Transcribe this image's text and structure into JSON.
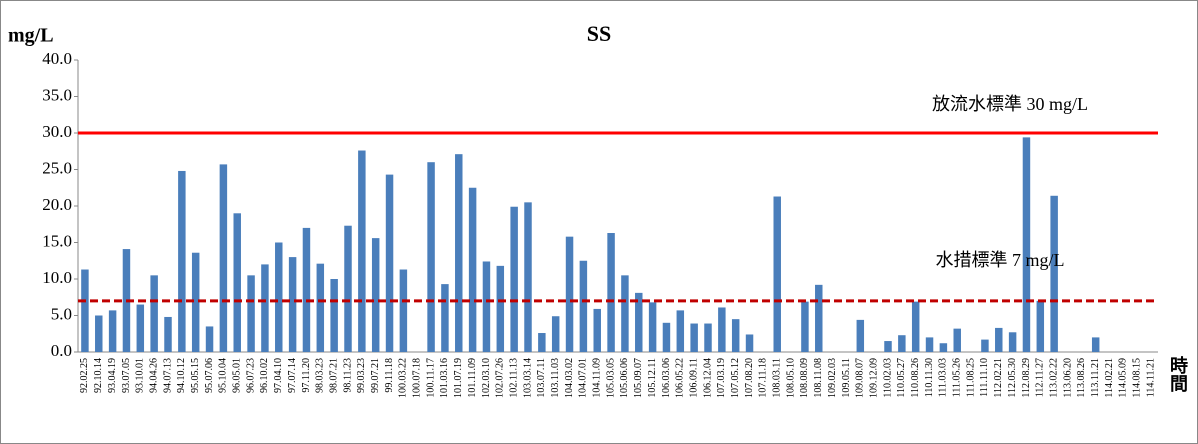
{
  "chart_data": {
    "type": "bar",
    "title": "SS",
    "y_label": "mg/L",
    "x_label": "時間",
    "color": "#4a7ebb",
    "categories": [
      "92.02.25",
      "92.10.14",
      "93.04.19",
      "93.07.05",
      "93.10.01",
      "94.04.26",
      "94.07.13",
      "94.10.12",
      "95.05.15",
      "95.07.06",
      "95.10.04",
      "96.05.01",
      "96.07.23",
      "96.10.02",
      "97.04.10",
      "97.07.14",
      "97.11.20",
      "98.03.23",
      "98.07.21",
      "98.11.23",
      "99.03.23",
      "99.07.21",
      "99.11.18",
      "100.03.22",
      "100.07.18",
      "100.11.17",
      "101.03.16",
      "101.07.19",
      "101.11.09",
      "102.03.10",
      "102.07.26",
      "102.11.13",
      "103.03.14",
      "103.07.11",
      "103.11.03",
      "104.03.02",
      "104.07.01",
      "104.11.09",
      "105.03.05",
      "105.06.06",
      "105.09.07",
      "105.12.11",
      "106.03.06",
      "106.05.22",
      "106.09.11",
      "106.12.04",
      "107.03.19",
      "107.05.12",
      "107.08.20",
      "107.11.18",
      "108.03.11",
      "108.05.10",
      "108.08.09",
      "108.11.08",
      "109.02.03",
      "109.05.11",
      "109.08.07",
      "109.12.09",
      "110.02.03",
      "110.05.27",
      "110.08.26",
      "110.11.30",
      "111.03.03",
      "111.05.26",
      "111.08.25",
      "111.11.10",
      "112.02.21",
      "112.05.30",
      "112.08.29",
      "112.11.27",
      "113.02.22",
      "113.06.20",
      "113.08.26",
      "113.11.21",
      "114.02.21",
      "114.05.09",
      "114.08.15",
      "114.11.21"
    ],
    "values": [
      11.3,
      5.0,
      5.7,
      14.1,
      6.5,
      10.5,
      4.8,
      24.8,
      13.6,
      3.5,
      25.7,
      19.0,
      10.5,
      12.0,
      15.0,
      13.0,
      17.0,
      12.1,
      10.0,
      17.3,
      27.6,
      15.6,
      24.3,
      11.3,
      null,
      26.0,
      9.3,
      27.1,
      22.5,
      12.4,
      11.8,
      19.9,
      20.5,
      2.6,
      4.9,
      15.8,
      12.5,
      5.9,
      16.3,
      10.5,
      8.1,
      6.8,
      4.0,
      5.7,
      3.9,
      3.9,
      6.1,
      4.5,
      2.4,
      null,
      21.3,
      null,
      6.9,
      9.2,
      null,
      null,
      4.4,
      null,
      1.5,
      2.3,
      6.9,
      2.0,
      1.2,
      3.2,
      null,
      1.7,
      3.3,
      2.7,
      29.4,
      7.0,
      21.4,
      null,
      null,
      2.0,
      null,
      null,
      null,
      null
    ],
    "ylim": [
      0,
      40
    ],
    "yticks": [
      {
        "value": 0,
        "label": "0.0"
      },
      {
        "value": 5,
        "label": "5.0"
      },
      {
        "value": 10,
        "label": "10.0"
      },
      {
        "value": 15,
        "label": "15.0"
      },
      {
        "value": 20,
        "label": "20.0"
      },
      {
        "value": 25,
        "label": "25.0"
      },
      {
        "value": 30,
        "label": "30.0"
      },
      {
        "value": 35,
        "label": "35.0"
      },
      {
        "value": 40,
        "label": "40.0"
      }
    ],
    "reference_lines": [
      {
        "value": 30,
        "label": "放流水標準 30 mg/L",
        "color": "#ff0000",
        "style": "solid"
      },
      {
        "value": 7,
        "label": "水措標準 7 mg/L",
        "color": "#c00000",
        "style": "dashed"
      }
    ]
  }
}
